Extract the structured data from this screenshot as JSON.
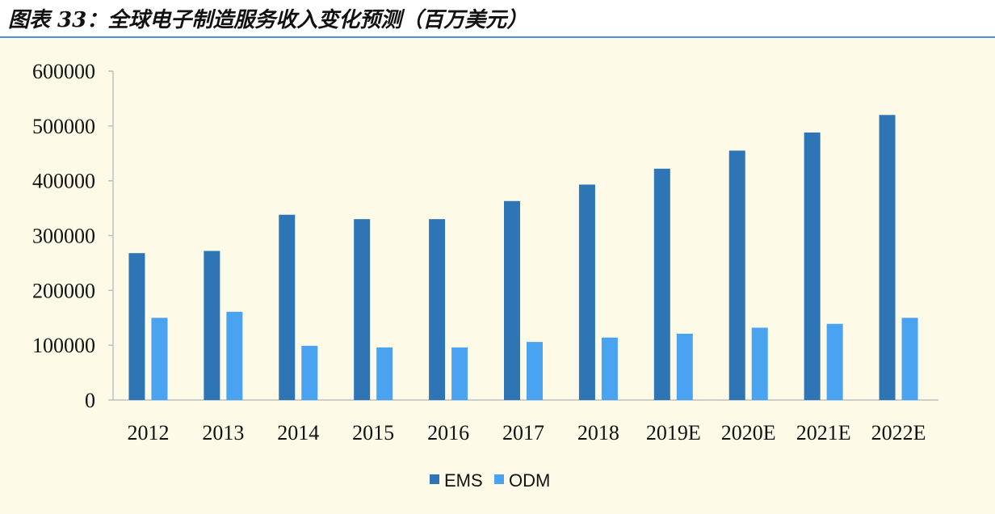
{
  "title": "图表 33：全球电子制造服务收入变化预测（百万美元）",
  "chart_data": {
    "type": "bar",
    "categories": [
      "2012",
      "2013",
      "2014",
      "2015",
      "2016",
      "2017",
      "2018",
      "2019E",
      "2020E",
      "2021E",
      "2022E"
    ],
    "series": [
      {
        "name": "EMS",
        "color": "#2e75b6",
        "values": [
          268000,
          272000,
          338000,
          330000,
          330000,
          363000,
          393000,
          422000,
          455000,
          488000,
          520000
        ]
      },
      {
        "name": "ODM",
        "color": "#4aa3f0",
        "values": [
          150000,
          161000,
          99000,
          96000,
          96000,
          106000,
          114000,
          121000,
          132000,
          139000,
          150000
        ]
      }
    ],
    "yticks": [
      "0",
      "100000",
      "200000",
      "300000",
      "400000",
      "500000",
      "600000"
    ],
    "ylim": [
      0,
      600000
    ],
    "legend": "bottom-center",
    "grid": false
  }
}
